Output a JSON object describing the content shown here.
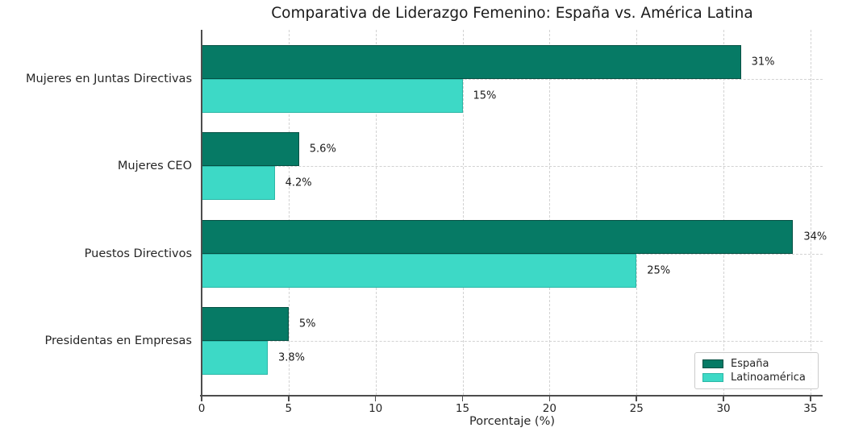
{
  "chart_data": {
    "type": "bar",
    "orientation": "horizontal",
    "title": "Comparativa de Liderazgo Femenino: España vs. América Latina",
    "xlabel": "Porcentaje (%)",
    "categories": [
      "Mujeres en Juntas Directivas",
      "Mujeres CEO",
      "Puestos Directivos",
      "Presidentas en Empresas"
    ],
    "series": [
      {
        "name": "España",
        "color": "#067a65",
        "edge_color": "#045043",
        "values": [
          31,
          5.6,
          34,
          5
        ],
        "value_labels": [
          "31%",
          "5.6%",
          "34%",
          "5%"
        ]
      },
      {
        "name": "Latinoamérica",
        "color": "#3dd9c6",
        "edge_color": "#2bb7a6",
        "values": [
          15,
          4.2,
          25,
          3.8
        ],
        "value_labels": [
          "15%",
          "4.2%",
          "25%",
          "3.8%"
        ]
      }
    ],
    "xticks": [
      "0",
      "5",
      "10",
      "15",
      "20",
      "25",
      "30",
      "35"
    ],
    "xtick_values": [
      0,
      5,
      10,
      15,
      20,
      25,
      30,
      35
    ],
    "xlim": [
      0,
      35.7
    ],
    "grid": "dashed-both-axes",
    "legend_position": "lower-right"
  }
}
